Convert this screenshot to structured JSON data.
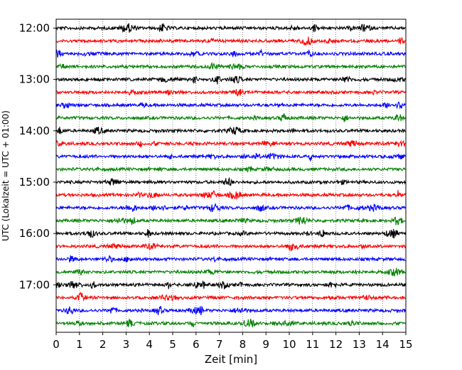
{
  "chart_data": {
    "type": "line",
    "title": "",
    "xlabel": "Zeit  [min]",
    "ylabel": "UTC (Lokalzeit = UTC + 01:00)",
    "xlim": [
      0,
      15
    ],
    "x_ticks": [
      "0",
      "1",
      "2",
      "3",
      "4",
      "5",
      "6",
      "7",
      "8",
      "9",
      "10",
      "11",
      "12",
      "13",
      "14",
      "15"
    ],
    "y_ticks": [
      "12:00",
      "13:00",
      "14:00",
      "15:00",
      "16:00",
      "17:00"
    ],
    "trace_interval_min": 15,
    "grid": {
      "x": true,
      "y": false,
      "style": "dotted"
    },
    "trace_colors": [
      "#000000",
      "#ff0000",
      "#0000ff",
      "#008000"
    ],
    "series": [
      {
        "start": "12:00",
        "color": "#000000"
      },
      {
        "start": "12:15",
        "color": "#ff0000"
      },
      {
        "start": "12:30",
        "color": "#0000ff"
      },
      {
        "start": "12:45",
        "color": "#008000"
      },
      {
        "start": "13:00",
        "color": "#000000"
      },
      {
        "start": "13:15",
        "color": "#ff0000"
      },
      {
        "start": "13:30",
        "color": "#0000ff"
      },
      {
        "start": "13:45",
        "color": "#008000"
      },
      {
        "start": "14:00",
        "color": "#000000"
      },
      {
        "start": "14:15",
        "color": "#ff0000"
      },
      {
        "start": "14:30",
        "color": "#0000ff"
      },
      {
        "start": "14:45",
        "color": "#008000"
      },
      {
        "start": "15:00",
        "color": "#000000"
      },
      {
        "start": "15:15",
        "color": "#ff0000"
      },
      {
        "start": "15:30",
        "color": "#0000ff"
      },
      {
        "start": "15:45",
        "color": "#008000"
      },
      {
        "start": "16:00",
        "color": "#000000"
      },
      {
        "start": "16:15",
        "color": "#ff0000"
      },
      {
        "start": "16:30",
        "color": "#0000ff"
      },
      {
        "start": "16:45",
        "color": "#008000"
      },
      {
        "start": "17:00",
        "color": "#000000"
      },
      {
        "start": "17:15",
        "color": "#ff0000"
      },
      {
        "start": "17:30",
        "color": "#0000ff"
      },
      {
        "start": "17:45",
        "color": "#008000"
      }
    ]
  }
}
